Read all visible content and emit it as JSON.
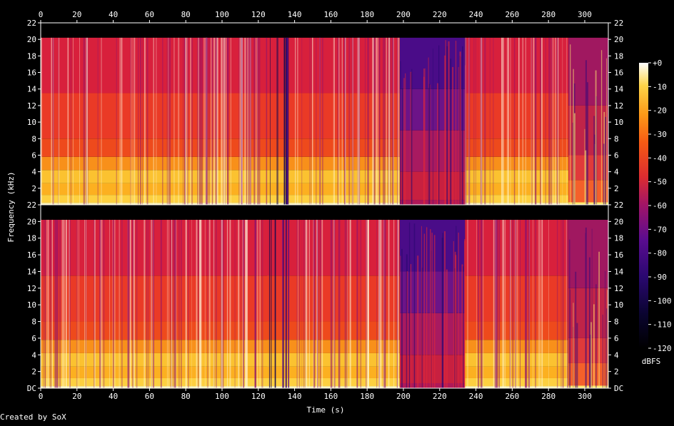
{
  "credit": "Created by SoX",
  "chart_data": {
    "type": "heatmap",
    "xlabel": "Time (s)",
    "ylabel": "Frequency (kHz)",
    "xlim": [
      0,
      313
    ],
    "ylim": [
      0,
      22
    ],
    "x_ticks": [
      0,
      20,
      40,
      60,
      80,
      100,
      120,
      140,
      160,
      180,
      200,
      220,
      240,
      260,
      280,
      300
    ],
    "y_ticks": [
      {
        "value": 0,
        "label": "DC"
      },
      {
        "value": 2,
        "label": "2"
      },
      {
        "value": 4,
        "label": "4"
      },
      {
        "value": 6,
        "label": "6"
      },
      {
        "value": 8,
        "label": "8"
      },
      {
        "value": 10,
        "label": "10"
      },
      {
        "value": 12,
        "label": "12"
      },
      {
        "value": 14,
        "label": "14"
      },
      {
        "value": 16,
        "label": "16"
      },
      {
        "value": 18,
        "label": "18"
      },
      {
        "value": 20,
        "label": "20"
      },
      {
        "value": 22,
        "label": "22"
      }
    ],
    "channels": 2,
    "colorbar": {
      "label": "dBFS",
      "ticks": [
        "+0",
        "-10",
        "-20",
        "-30",
        "-40",
        "-50",
        "-60",
        "-70",
        "-80",
        "-90",
        "-100",
        "-110",
        "-120"
      ],
      "range": [
        -120,
        0
      ]
    },
    "segments": [
      {
        "start": 0,
        "end": 125,
        "level": "loud",
        "top_cutoff_khz": 20.2
      },
      {
        "start": 125,
        "end": 137,
        "level": "dips",
        "top_cutoff_khz": 20.2
      },
      {
        "start": 137,
        "end": 198,
        "level": "loud",
        "top_cutoff_khz": 20.2
      },
      {
        "start": 198,
        "end": 234,
        "level": "quiet",
        "top_cutoff_khz": 20.2
      },
      {
        "start": 234,
        "end": 291,
        "level": "loud",
        "top_cutoff_khz": 20.2
      },
      {
        "start": 291,
        "end": 313,
        "level": "fading",
        "top_cutoff_khz": 20.2
      }
    ],
    "palette": [
      "#000000",
      "#1a0650",
      "#4a0a8a",
      "#8a1070",
      "#c81e40",
      "#ec3a1c",
      "#fb7a10",
      "#fdb52a",
      "#fde870",
      "#ffffff"
    ]
  }
}
